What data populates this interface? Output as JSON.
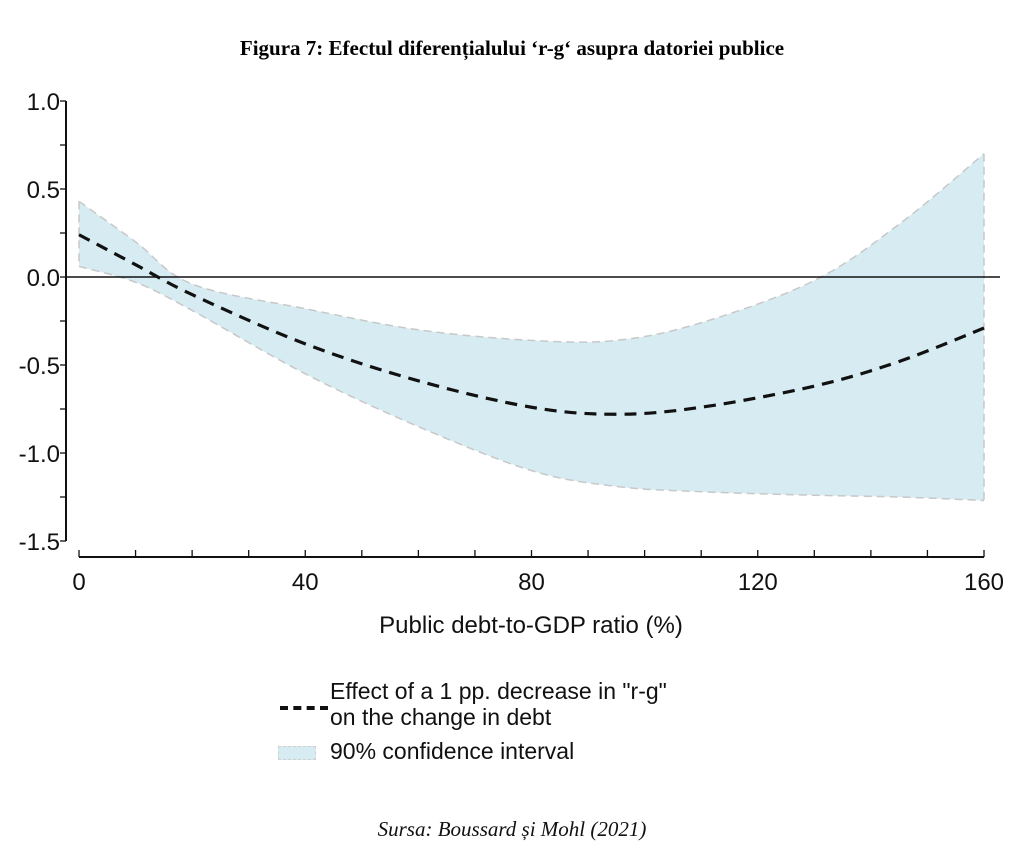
{
  "figure": {
    "title": "Figura 7: Efectul diferențialului ‘r-g‘ asupra datoriei publice",
    "source": "Sursa: Boussard și Mohl (2021)"
  },
  "legend": {
    "effect_line1": "Effect of a 1 pp. decrease in \"r-g\"",
    "effect_line2": "on the change in debt",
    "ci_label": "90% confidence interval"
  },
  "colors": {
    "band_fill": "#d6ebf2",
    "band_edge": "#c8c8c8",
    "line": "#111111",
    "axis": "#111111"
  },
  "chart_data": {
    "type": "line",
    "title": "Figura 7: Efectul diferențialului ‘r-g‘ asupra datoriei publice",
    "xlabel": "Public debt-to-GDP ratio (%)",
    "ylabel": "",
    "xlim": [
      0,
      160
    ],
    "ylim": [
      -1.5,
      1.0
    ],
    "xticks": [
      0,
      40,
      80,
      120,
      160
    ],
    "xtick_labels": [
      "0",
      "40",
      "80",
      "120",
      "160"
    ],
    "x_minor_step": 10,
    "yticks": [
      1.0,
      0.5,
      0.0,
      -0.5,
      -1.0,
      -1.5
    ],
    "ytick_labels": [
      "1.0",
      "0.5",
      "0.0",
      "-0.5",
      "-1.0",
      "-1.5"
    ],
    "y_minor_step": 0.25,
    "reference_line_y": 0.0,
    "grid": false,
    "legend_position": "bottom",
    "x": [
      0,
      10,
      20,
      40,
      60,
      80,
      95,
      110,
      130,
      145,
      160
    ],
    "series": [
      {
        "name": "Effect of a 1 pp. decrease in \"r-g\" on the change in debt",
        "style": "dashed",
        "values": [
          0.24,
          0.07,
          -0.1,
          -0.38,
          -0.59,
          -0.74,
          -0.78,
          -0.74,
          -0.62,
          -0.48,
          -0.29
        ]
      }
    ],
    "band": {
      "name": "90% confidence interval",
      "upper": [
        0.43,
        0.2,
        -0.04,
        -0.18,
        -0.3,
        -0.36,
        -0.36,
        -0.26,
        -0.02,
        0.3,
        0.7
      ],
      "lower": [
        0.06,
        -0.03,
        -0.19,
        -0.55,
        -0.85,
        -1.1,
        -1.19,
        -1.22,
        -1.24,
        -1.25,
        -1.27
      ]
    }
  }
}
